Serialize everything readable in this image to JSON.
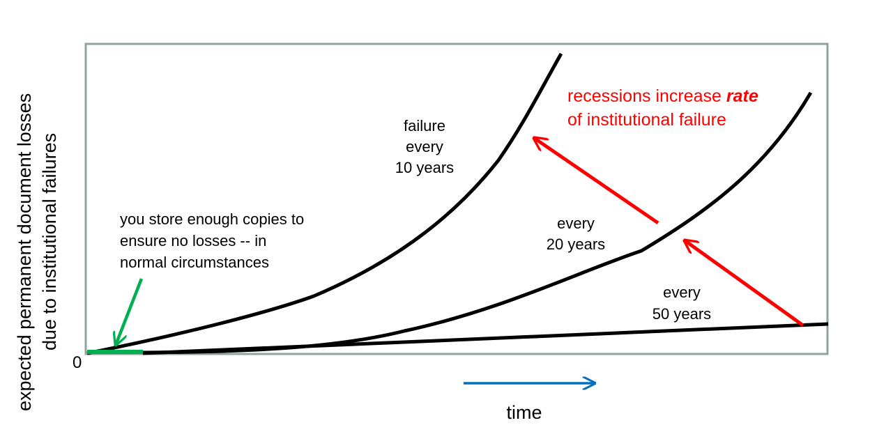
{
  "chart_data": {
    "type": "line",
    "title": "",
    "xlabel": "time",
    "ylabel_lines": [
      "expected permanent document losses",
      "due to institutional failures"
    ],
    "y_zero_label": "0",
    "series": [
      {
        "label_lines": [
          "failure",
          "every",
          "10 years"
        ]
      },
      {
        "label_lines": [
          "every",
          "20 years"
        ]
      },
      {
        "label_lines": [
          "every",
          "50 years"
        ]
      }
    ],
    "annotations": {
      "normal": {
        "lines": [
          "you store enough copies to",
          "ensure no losses -- in",
          "normal circumstances"
        ],
        "color": "#00b050"
      },
      "recession": {
        "line1_before": "recessions increase ",
        "line1_em": "rate",
        "line2": "of institutional failure",
        "color": "#ff0000"
      },
      "time_arrow_color": "#0070c0"
    },
    "frame_color": "#8fa3a0",
    "grid": false
  }
}
